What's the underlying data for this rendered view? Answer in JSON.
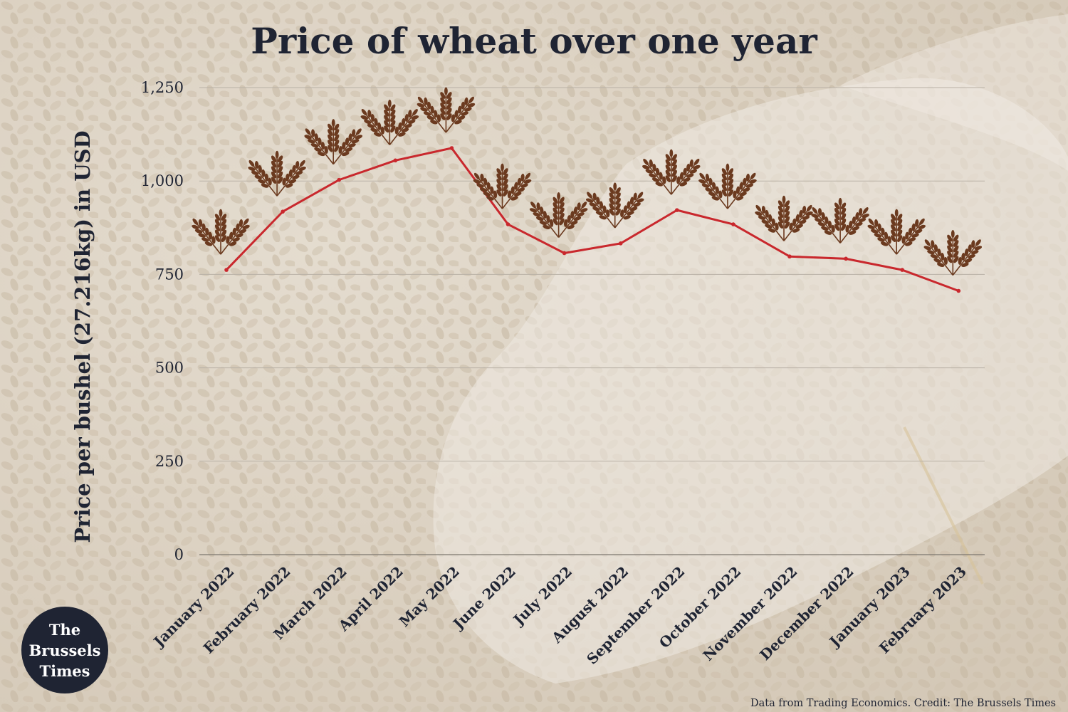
{
  "chart_data": {
    "type": "line",
    "title": "Price of wheat over one year",
    "ylabel": "Price per bushel (27.216kg) in USD",
    "xlabel": "",
    "categories": [
      "January 2022",
      "February 2022",
      "March 2022",
      "April 2022",
      "May 2022",
      "June 2022",
      "July 2022",
      "August 2022",
      "September 2022",
      "October 2022",
      "November 2022",
      "December 2022",
      "January 2023",
      "February 2023"
    ],
    "series": [
      {
        "values": [
          762,
          918,
          1003,
          1055,
          1088,
          884,
          807,
          833,
          922,
          884,
          798,
          792,
          762,
          706
        ]
      }
    ],
    "ylim": [
      0,
      1250
    ],
    "yticks": [
      0,
      250,
      500,
      750,
      1000,
      1250
    ],
    "ytick_labels": [
      "0",
      "250",
      "500",
      "750",
      "1,000",
      "1,250"
    ],
    "grid": true,
    "line_color": "#c9282d",
    "marker": "wheat-icon",
    "marker_color": "#6b3a1f"
  },
  "credit": "Data from Trading Economics. Credit: The Brussels Times",
  "logo": {
    "lines": [
      "The",
      "Brussels",
      "Times"
    ],
    "background": "#1f2433"
  }
}
